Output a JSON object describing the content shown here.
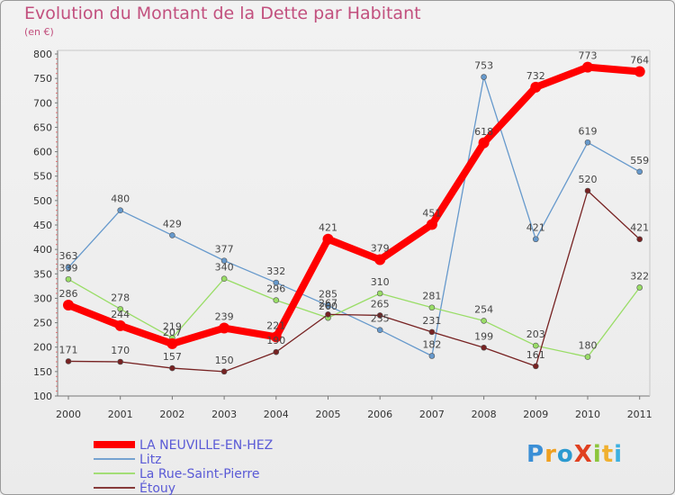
{
  "title": "Evolution du Montant de la Dette par Habitant",
  "subtitle": "(en €)",
  "logo": {
    "text": "ProXiti",
    "colors": [
      "#3b8fd6",
      "#f0a020",
      "#2c9ad0",
      "#e04020",
      "#8cc63c",
      "#f0b030",
      "#3cb0e0"
    ]
  },
  "chart_data": {
    "type": "line",
    "x": [
      "2000",
      "2001",
      "2002",
      "2003",
      "2004",
      "2005",
      "2006",
      "2007",
      "2008",
      "2009",
      "2010",
      "2011"
    ],
    "ylim": [
      100,
      800
    ],
    "yticks": [
      100,
      150,
      200,
      250,
      300,
      350,
      400,
      450,
      500,
      550,
      600,
      650,
      700,
      750,
      800
    ],
    "grid": false,
    "legend_position": "bottom-left",
    "series": [
      {
        "name": "LA NEUVILLE-EN-HEZ",
        "color": "#ff0000",
        "values": [
          286,
          244,
          207,
          239,
          221,
          421,
          379,
          451,
          618,
          732,
          773,
          764
        ]
      },
      {
        "name": "Litz",
        "color": "#6699cc",
        "values": [
          363,
          480,
          429,
          377,
          332,
          285,
          235,
          182,
          753,
          421,
          619,
          559
        ]
      },
      {
        "name": "La Rue-Saint-Pierre",
        "color": "#99dd66",
        "values": [
          339,
          278,
          219,
          340,
          296,
          260,
          310,
          281,
          254,
          203,
          180,
          322
        ]
      },
      {
        "name": "Étouy",
        "color": "#772222",
        "values": [
          171,
          170,
          157,
          150,
          190,
          267,
          265,
          231,
          199,
          161,
          520,
          421
        ]
      }
    ]
  }
}
